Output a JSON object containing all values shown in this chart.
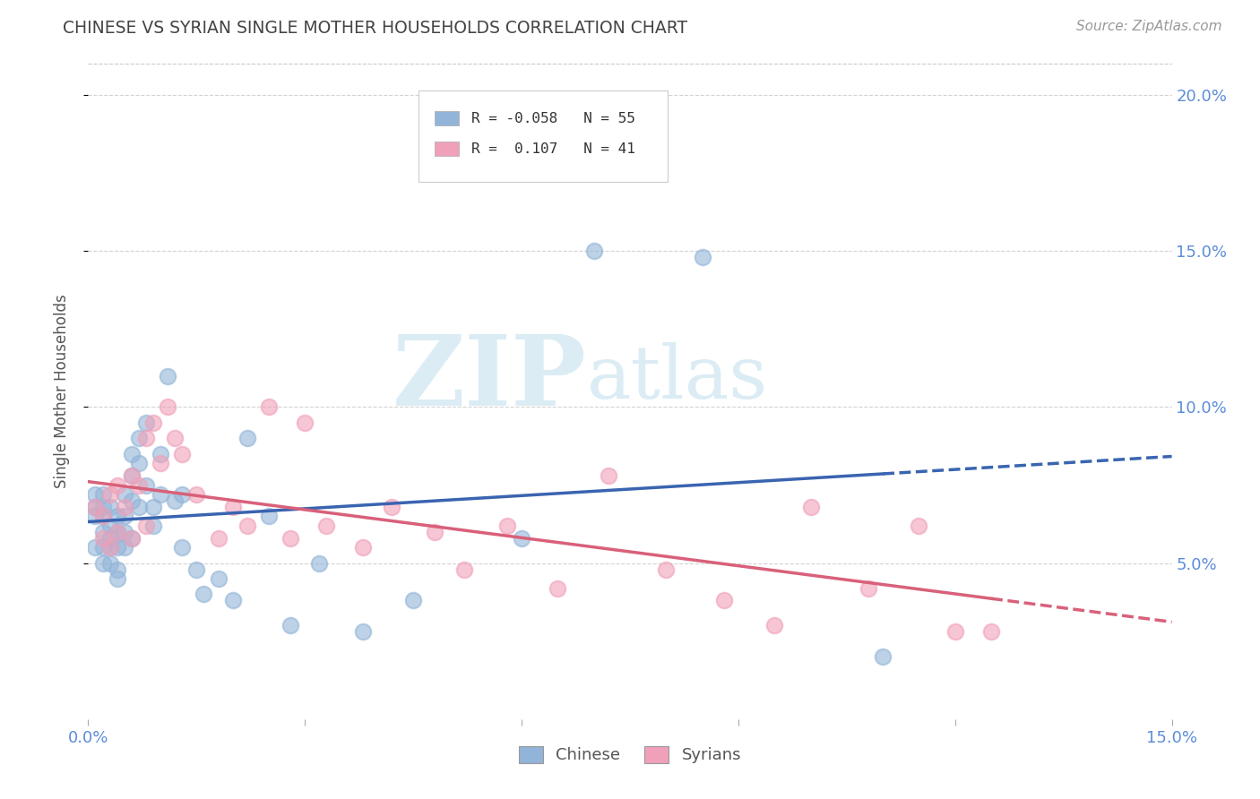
{
  "title": "CHINESE VS SYRIAN SINGLE MOTHER HOUSEHOLDS CORRELATION CHART",
  "source": "Source: ZipAtlas.com",
  "ylabel_label": "Single Mother Households",
  "xlim": [
    0.0,
    0.15
  ],
  "ylim": [
    0.0,
    0.21
  ],
  "legend_R_chinese": "-0.058",
  "legend_N_chinese": "55",
  "legend_R_syrian": "0.107",
  "legend_N_syrian": "41",
  "chinese_color": "#92b4d8",
  "syrian_color": "#f0a0b8",
  "trend_chinese_color": "#3a64b0",
  "trend_syrian_color": "#d9607a",
  "watermark_color": "#cce4f0",
  "background_color": "#ffffff",
  "grid_color": "#c8c8c8",
  "title_color": "#444444",
  "tick_label_color": "#5b8dd9",
  "ylabel_color": "#555555",
  "chinese_x": [
    0.001,
    0.001,
    0.001,
    0.001,
    0.002,
    0.002,
    0.002,
    0.002,
    0.002,
    0.002,
    0.003,
    0.003,
    0.003,
    0.003,
    0.003,
    0.004,
    0.004,
    0.004,
    0.004,
    0.004,
    0.005,
    0.005,
    0.005,
    0.005,
    0.006,
    0.006,
    0.006,
    0.006,
    0.007,
    0.007,
    0.007,
    0.008,
    0.008,
    0.009,
    0.009,
    0.01,
    0.01,
    0.011,
    0.012,
    0.013,
    0.013,
    0.015,
    0.016,
    0.018,
    0.02,
    0.022,
    0.025,
    0.028,
    0.032,
    0.038,
    0.045,
    0.06,
    0.07,
    0.085,
    0.11
  ],
  "chinese_y": [
    0.068,
    0.072,
    0.065,
    0.055,
    0.06,
    0.065,
    0.055,
    0.05,
    0.072,
    0.068,
    0.062,
    0.058,
    0.068,
    0.05,
    0.055,
    0.045,
    0.055,
    0.06,
    0.065,
    0.048,
    0.072,
    0.06,
    0.055,
    0.065,
    0.078,
    0.085,
    0.058,
    0.07,
    0.09,
    0.082,
    0.068,
    0.095,
    0.075,
    0.068,
    0.062,
    0.085,
    0.072,
    0.11,
    0.07,
    0.072,
    0.055,
    0.048,
    0.04,
    0.045,
    0.038,
    0.09,
    0.065,
    0.03,
    0.05,
    0.028,
    0.038,
    0.058,
    0.15,
    0.148,
    0.02
  ],
  "syrian_x": [
    0.001,
    0.002,
    0.002,
    0.003,
    0.003,
    0.004,
    0.004,
    0.005,
    0.006,
    0.006,
    0.007,
    0.008,
    0.008,
    0.009,
    0.01,
    0.011,
    0.012,
    0.013,
    0.015,
    0.018,
    0.02,
    0.022,
    0.025,
    0.028,
    0.03,
    0.033,
    0.038,
    0.042,
    0.048,
    0.052,
    0.058,
    0.065,
    0.072,
    0.08,
    0.088,
    0.095,
    0.1,
    0.108,
    0.115,
    0.12,
    0.125
  ],
  "syrian_y": [
    0.068,
    0.058,
    0.065,
    0.055,
    0.072,
    0.06,
    0.075,
    0.068,
    0.058,
    0.078,
    0.075,
    0.062,
    0.09,
    0.095,
    0.082,
    0.1,
    0.09,
    0.085,
    0.072,
    0.058,
    0.068,
    0.062,
    0.1,
    0.058,
    0.095,
    0.062,
    0.055,
    0.068,
    0.06,
    0.048,
    0.062,
    0.042,
    0.078,
    0.048,
    0.038,
    0.03,
    0.068,
    0.042,
    0.062,
    0.028,
    0.028
  ]
}
